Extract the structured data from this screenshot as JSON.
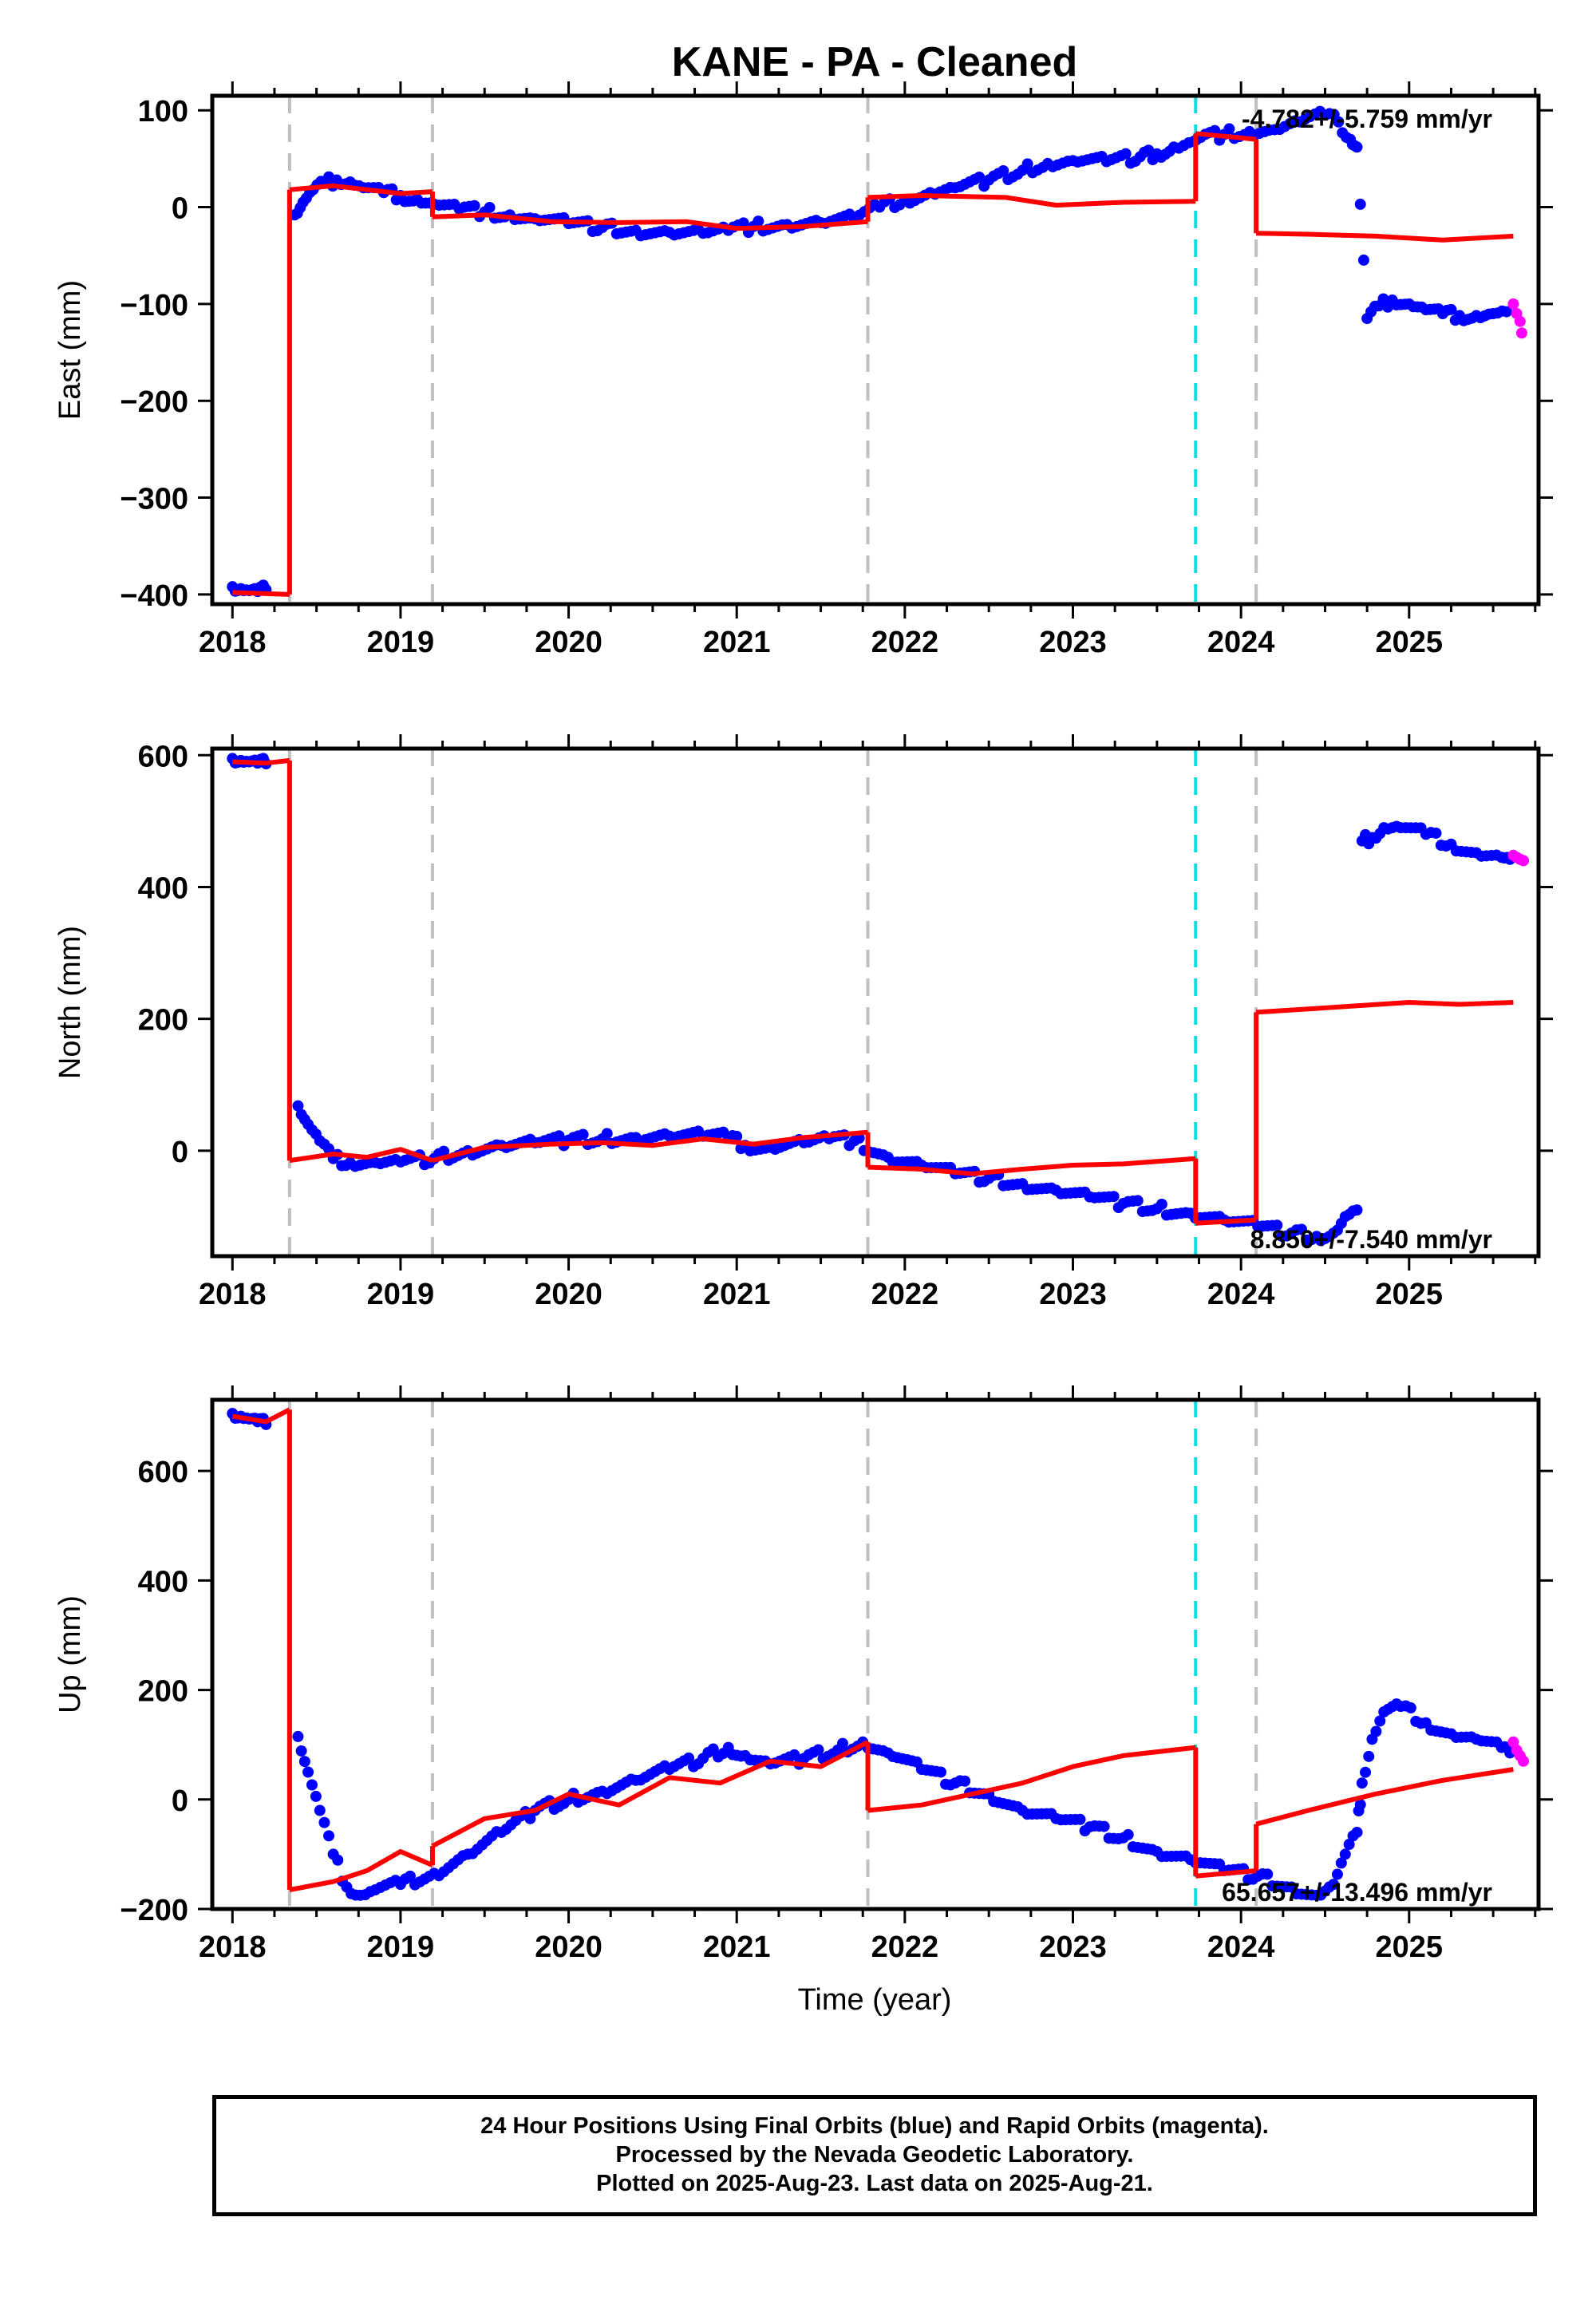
{
  "title": "KANE  - PA - Cleaned",
  "x_axis_label": "Time (year)",
  "footer": {
    "line1": "24 Hour Positions Using Final Orbits (blue) and Rapid Orbits (magenta).",
    "line2": "Processed by the Nevada Geodetic Laboratory.",
    "line3": "Plotted on 2025-Aug-23. Last data on 2025-Aug-21."
  },
  "colors": {
    "final_orbits": "#0000ff",
    "rapid_orbits": "#ff00ff",
    "model": "#ff0000",
    "step_lines": "#c0c0c0",
    "earthquake_line": "#00e0e0"
  },
  "chart_data": [
    {
      "type": "scatter",
      "ylabel": "East (mm)",
      "xlim": [
        2017.88,
        2025.77
      ],
      "ylim": [
        -410,
        115
      ],
      "yticks": [
        100,
        0,
        -100,
        -200,
        -300,
        -400
      ],
      "xticks": [
        2018,
        2019,
        2020,
        2021,
        2022,
        2023,
        2024,
        2025
      ],
      "rate_label": "-4.782+/-5.759 mm/yr",
      "rate_position": "top-right",
      "step_lines": [
        2018.34,
        2019.19,
        2021.78,
        2024.09
      ],
      "earthquake_lines": [
        2023.73
      ],
      "final_orbits": [
        [
          2018.0,
          -392
        ],
        [
          2018.05,
          -394
        ],
        [
          2018.1,
          -396
        ],
        [
          2018.15,
          -397
        ],
        [
          2018.2,
          -395
        ],
        [
          2018.37,
          -8
        ],
        [
          2018.42,
          5
        ],
        [
          2018.48,
          18
        ],
        [
          2018.55,
          25
        ],
        [
          2018.62,
          28
        ],
        [
          2018.7,
          26
        ],
        [
          2018.78,
          20
        ],
        [
          2018.9,
          15
        ],
        [
          2019.0,
          12
        ],
        [
          2019.1,
          8
        ],
        [
          2019.2,
          3
        ],
        [
          2019.35,
          -2
        ],
        [
          2019.5,
          -5
        ],
        [
          2019.65,
          -8
        ],
        [
          2019.8,
          -12
        ],
        [
          2020.0,
          -17
        ],
        [
          2020.2,
          -21
        ],
        [
          2020.4,
          -24
        ],
        [
          2020.6,
          -26
        ],
        [
          2020.8,
          -27
        ],
        [
          2020.95,
          -24
        ],
        [
          2021.1,
          -20
        ],
        [
          2021.3,
          -18
        ],
        [
          2021.5,
          -16
        ],
        [
          2021.7,
          -12
        ],
        [
          2021.85,
          0
        ],
        [
          2022.0,
          8
        ],
        [
          2022.15,
          15
        ],
        [
          2022.3,
          20
        ],
        [
          2022.5,
          28
        ],
        [
          2022.7,
          38
        ],
        [
          2022.85,
          45
        ],
        [
          2023.0,
          48
        ],
        [
          2023.2,
          47
        ],
        [
          2023.4,
          52
        ],
        [
          2023.5,
          55
        ],
        [
          2023.6,
          62
        ],
        [
          2023.72,
          68
        ],
        [
          2023.76,
          72
        ],
        [
          2023.9,
          75
        ],
        [
          2024.05,
          78
        ],
        [
          2024.2,
          80
        ],
        [
          2024.35,
          88
        ],
        [
          2024.5,
          95
        ],
        [
          2024.58,
          88
        ],
        [
          2024.65,
          70
        ],
        [
          2024.69,
          62
        ],
        [
          2024.75,
          -115
        ],
        [
          2024.82,
          -102
        ],
        [
          2024.9,
          -96
        ],
        [
          2025.0,
          -100
        ],
        [
          2025.1,
          -106
        ],
        [
          2025.2,
          -110
        ],
        [
          2025.3,
          -112
        ],
        [
          2025.4,
          -112
        ],
        [
          2025.5,
          -110
        ],
        [
          2025.58,
          -108
        ]
      ],
      "rapid_orbits": [
        [
          2025.62,
          -100
        ],
        [
          2025.64,
          -110
        ],
        [
          2025.66,
          -118
        ],
        [
          2025.67,
          -130
        ]
      ],
      "model_segments": [
        [
          [
            2018.0,
            -398
          ],
          [
            2018.34,
            -400
          ]
        ],
        [
          [
            2018.34,
            18
          ],
          [
            2018.6,
            22
          ],
          [
            2019.0,
            14
          ],
          [
            2019.19,
            16
          ]
        ],
        [
          [
            2019.19,
            -10
          ],
          [
            2019.5,
            -8
          ],
          [
            2019.9,
            -15
          ],
          [
            2020.3,
            -16
          ],
          [
            2020.7,
            -15
          ],
          [
            2021.0,
            -22
          ],
          [
            2021.4,
            -20
          ],
          [
            2021.78,
            -15
          ]
        ],
        [
          [
            2021.78,
            10
          ],
          [
            2022.1,
            12
          ],
          [
            2022.6,
            10
          ],
          [
            2022.9,
            2
          ],
          [
            2023.3,
            5
          ],
          [
            2023.73,
            6
          ]
        ],
        [
          [
            2023.73,
            76
          ],
          [
            2024.09,
            70
          ]
        ],
        [
          [
            2024.09,
            -27
          ],
          [
            2024.4,
            -28
          ],
          [
            2024.8,
            -30
          ],
          [
            2025.2,
            -34
          ],
          [
            2025.62,
            -30
          ]
        ]
      ]
    },
    {
      "type": "scatter",
      "ylabel": "North (mm)",
      "xlim": [
        2017.88,
        2025.77
      ],
      "ylim": [
        -160,
        610
      ],
      "yticks": [
        600,
        400,
        200,
        0
      ],
      "xticks": [
        2018,
        2019,
        2020,
        2021,
        2022,
        2023,
        2024,
        2025
      ],
      "rate_label": "8.850+/-7.540 mm/yr",
      "rate_position": "bottom-right",
      "step_lines": [
        2018.34,
        2019.19,
        2021.78,
        2024.09
      ],
      "earthquake_lines": [
        2023.73
      ],
      "final_orbits": [
        [
          2018.0,
          595
        ],
        [
          2018.05,
          592
        ],
        [
          2018.1,
          590
        ],
        [
          2018.15,
          588
        ],
        [
          2018.2,
          587
        ],
        [
          2018.39,
          68
        ],
        [
          2018.45,
          40
        ],
        [
          2018.52,
          15
        ],
        [
          2018.6,
          -12
        ],
        [
          2018.7,
          -18
        ],
        [
          2018.85,
          -18
        ],
        [
          2019.0,
          -17
        ],
        [
          2019.2,
          -12
        ],
        [
          2019.4,
          0
        ],
        [
          2019.6,
          8
        ],
        [
          2019.8,
          12
        ],
        [
          2020.0,
          16
        ],
        [
          2020.2,
          18
        ],
        [
          2020.4,
          20
        ],
        [
          2020.6,
          22
        ],
        [
          2020.8,
          22
        ],
        [
          2020.95,
          20
        ],
        [
          2021.05,
          8
        ],
        [
          2021.2,
          5
        ],
        [
          2021.4,
          12
        ],
        [
          2021.55,
          18
        ],
        [
          2021.7,
          15
        ],
        [
          2021.9,
          -10
        ],
        [
          2022.1,
          -22
        ],
        [
          2022.3,
          -35
        ],
        [
          2022.5,
          -42
        ],
        [
          2022.7,
          -50
        ],
        [
          2022.9,
          -60
        ],
        [
          2023.1,
          -70
        ],
        [
          2023.3,
          -80
        ],
        [
          2023.5,
          -88
        ],
        [
          2023.7,
          -95
        ],
        [
          2023.9,
          -105
        ],
        [
          2024.1,
          -115
        ],
        [
          2024.3,
          -125
        ],
        [
          2024.45,
          -130
        ],
        [
          2024.55,
          -125
        ],
        [
          2024.62,
          -100
        ],
        [
          2024.69,
          -90
        ],
        [
          2024.72,
          470
        ],
        [
          2024.78,
          475
        ],
        [
          2024.85,
          490
        ],
        [
          2024.95,
          490
        ],
        [
          2025.1,
          480
        ],
        [
          2025.25,
          465
        ],
        [
          2025.4,
          452
        ],
        [
          2025.55,
          445
        ],
        [
          2025.6,
          442
        ]
      ],
      "rapid_orbits": [
        [
          2025.62,
          448
        ],
        [
          2025.64,
          445
        ],
        [
          2025.66,
          442
        ],
        [
          2025.68,
          440
        ]
      ],
      "model_segments": [
        [
          [
            2018.0,
            590
          ],
          [
            2018.2,
            588
          ],
          [
            2018.34,
            592
          ]
        ],
        [
          [
            2018.34,
            -15
          ],
          [
            2018.6,
            -5
          ],
          [
            2018.8,
            -10
          ],
          [
            2019.0,
            2
          ],
          [
            2019.19,
            -15
          ]
        ],
        [
          [
            2019.19,
            -15
          ],
          [
            2019.5,
            5
          ],
          [
            2019.9,
            10
          ],
          [
            2020.2,
            12
          ],
          [
            2020.5,
            8
          ],
          [
            2020.8,
            18
          ],
          [
            2021.1,
            10
          ],
          [
            2021.4,
            20
          ],
          [
            2021.78,
            28
          ]
        ],
        [
          [
            2021.78,
            -25
          ],
          [
            2022.1,
            -28
          ],
          [
            2022.4,
            -35
          ],
          [
            2022.7,
            -28
          ],
          [
            2023.0,
            -22
          ],
          [
            2023.3,
            -20
          ],
          [
            2023.73,
            -12
          ]
        ],
        [
          [
            2023.73,
            -110
          ],
          [
            2024.09,
            -105
          ]
        ],
        [
          [
            2024.09,
            210
          ],
          [
            2024.4,
            215
          ],
          [
            2024.7,
            220
          ],
          [
            2025.0,
            225
          ],
          [
            2025.3,
            222
          ],
          [
            2025.62,
            225
          ]
        ]
      ]
    },
    {
      "type": "scatter",
      "ylabel": "Up (mm)",
      "xlim": [
        2017.88,
        2025.77
      ],
      "ylim": [
        -200,
        730
      ],
      "yticks": [
        600,
        400,
        200,
        0,
        -200
      ],
      "xticks": [
        2018,
        2019,
        2020,
        2021,
        2022,
        2023,
        2024,
        2025
      ],
      "xlabel": "Time (year)",
      "rate_label": "65.657+/-13.496 mm/yr",
      "rate_position": "bottom-right",
      "step_lines": [
        2018.34,
        2019.19,
        2021.78,
        2024.09
      ],
      "earthquake_lines": [
        2023.73
      ],
      "final_orbits": [
        [
          2018.0,
          705
        ],
        [
          2018.05,
          700
        ],
        [
          2018.1,
          695
        ],
        [
          2018.15,
          690
        ],
        [
          2018.2,
          685
        ],
        [
          2018.39,
          115
        ],
        [
          2018.45,
          50
        ],
        [
          2018.52,
          -20
        ],
        [
          2018.6,
          -100
        ],
        [
          2018.68,
          -160
        ],
        [
          2018.76,
          -175
        ],
        [
          2018.85,
          -165
        ],
        [
          2019.0,
          -155
        ],
        [
          2019.2,
          -135
        ],
        [
          2019.4,
          -100
        ],
        [
          2019.6,
          -60
        ],
        [
          2019.8,
          -20
        ],
        [
          2020.0,
          0
        ],
        [
          2020.2,
          15
        ],
        [
          2020.4,
          35
        ],
        [
          2020.6,
          55
        ],
        [
          2020.8,
          75
        ],
        [
          2020.95,
          95
        ],
        [
          2021.05,
          80
        ],
        [
          2021.2,
          65
        ],
        [
          2021.4,
          75
        ],
        [
          2021.6,
          90
        ],
        [
          2021.75,
          105
        ],
        [
          2021.9,
          85
        ],
        [
          2022.1,
          55
        ],
        [
          2022.3,
          30
        ],
        [
          2022.5,
          10
        ],
        [
          2022.7,
          -20
        ],
        [
          2022.9,
          -35
        ],
        [
          2023.1,
          -50
        ],
        [
          2023.3,
          -70
        ],
        [
          2023.5,
          -95
        ],
        [
          2023.7,
          -110
        ],
        [
          2023.9,
          -130
        ],
        [
          2024.1,
          -140
        ],
        [
          2024.3,
          -160
        ],
        [
          2024.45,
          -175
        ],
        [
          2024.55,
          -155
        ],
        [
          2024.62,
          -100
        ],
        [
          2024.69,
          -60
        ],
        [
          2024.72,
          30
        ],
        [
          2024.78,
          110
        ],
        [
          2024.85,
          160
        ],
        [
          2024.95,
          170
        ],
        [
          2025.1,
          140
        ],
        [
          2025.25,
          120
        ],
        [
          2025.4,
          110
        ],
        [
          2025.55,
          95
        ],
        [
          2025.6,
          85
        ]
      ],
      "rapid_orbits": [
        [
          2025.62,
          105
        ],
        [
          2025.64,
          90
        ],
        [
          2025.66,
          80
        ],
        [
          2025.68,
          70
        ]
      ],
      "model_segments": [
        [
          [
            2018.0,
            700
          ],
          [
            2018.2,
            690
          ],
          [
            2018.34,
            712
          ]
        ],
        [
          [
            2018.34,
            -165
          ],
          [
            2018.6,
            -150
          ],
          [
            2018.8,
            -130
          ],
          [
            2019.0,
            -95
          ],
          [
            2019.19,
            -120
          ]
        ],
        [
          [
            2019.19,
            -85
          ],
          [
            2019.5,
            -35
          ],
          [
            2019.8,
            -20
          ],
          [
            2020.0,
            10
          ],
          [
            2020.3,
            -10
          ],
          [
            2020.6,
            40
          ],
          [
            2020.9,
            30
          ],
          [
            2021.2,
            70
          ],
          [
            2021.5,
            60
          ],
          [
            2021.78,
            105
          ]
        ],
        [
          [
            2021.78,
            -20
          ],
          [
            2022.1,
            -10
          ],
          [
            2022.4,
            10
          ],
          [
            2022.7,
            30
          ],
          [
            2023.0,
            60
          ],
          [
            2023.3,
            80
          ],
          [
            2023.73,
            95
          ]
        ],
        [
          [
            2023.73,
            -140
          ],
          [
            2024.09,
            -130
          ]
        ],
        [
          [
            2024.09,
            -45
          ],
          [
            2024.4,
            -20
          ],
          [
            2024.8,
            10
          ],
          [
            2025.2,
            35
          ],
          [
            2025.62,
            55
          ]
        ]
      ]
    }
  ]
}
